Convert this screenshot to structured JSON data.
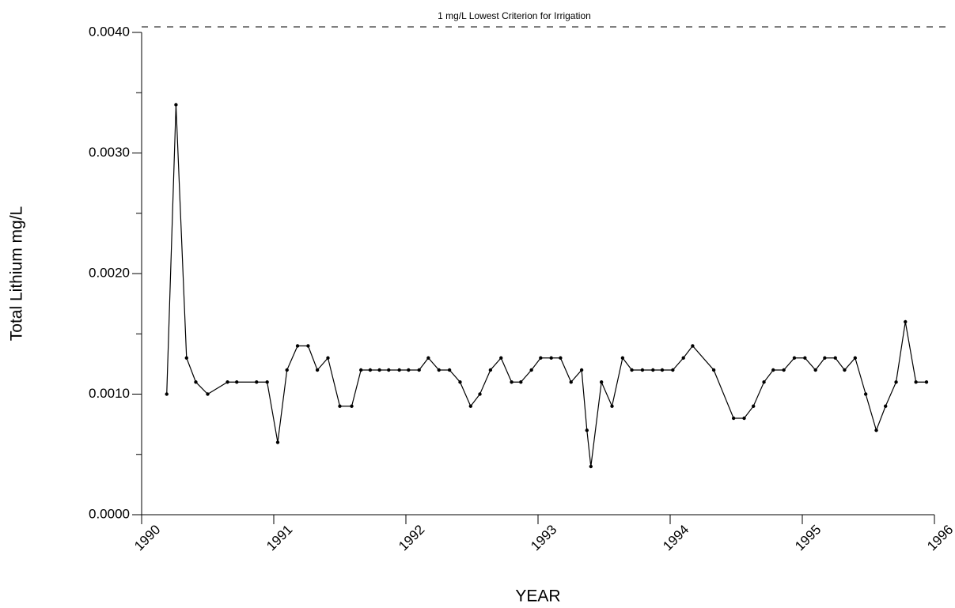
{
  "chart_data": {
    "type": "line",
    "y_label": "Total Lithium mg/L",
    "x_label": "YEAR",
    "reference_line": {
      "value": 0.004,
      "label": "1 mg/L Lowest Criterion for Irrigation"
    },
    "xlim": [
      1990,
      1996
    ],
    "xticks": [
      1990,
      1991,
      1992,
      1993,
      1994,
      1995,
      1996
    ],
    "ylim": [
      0,
      0.004
    ],
    "yticks": [
      {
        "value": 0,
        "label": "0.0000"
      },
      {
        "value": 0.001,
        "label": "0.0010"
      },
      {
        "value": 0.002,
        "label": "0.0020"
      },
      {
        "value": 0.003,
        "label": "0.0030"
      },
      {
        "value": 0.004,
        "label": "0.0040"
      }
    ],
    "yminor_ticks": [
      0.0005,
      0.0015,
      0.0025,
      0.0035
    ],
    "x": [
      1990.19,
      1990.26,
      1990.34,
      1990.41,
      1990.5,
      1990.65,
      1990.72,
      1990.87,
      1990.95,
      1991.03,
      1991.1,
      1991.18,
      1991.26,
      1991.33,
      1991.41,
      1991.5,
      1991.59,
      1991.66,
      1991.73,
      1991.8,
      1991.87,
      1991.95,
      1992.02,
      1992.1,
      1992.17,
      1992.25,
      1992.33,
      1992.41,
      1992.49,
      1992.56,
      1992.64,
      1992.72,
      1992.8,
      1992.87,
      1992.95,
      1993.02,
      1993.1,
      1993.17,
      1993.25,
      1993.33,
      1993.37,
      1993.4,
      1993.48,
      1993.56,
      1993.64,
      1993.71,
      1993.79,
      1993.87,
      1993.94,
      1994.02,
      1994.1,
      1994.17,
      1994.33,
      1994.48,
      1994.56,
      1994.63,
      1994.71,
      1994.78,
      1994.86,
      1994.94,
      1995.02,
      1995.1,
      1995.17,
      1995.25,
      1995.32,
      1995.4,
      1995.48,
      1995.56,
      1995.63,
      1995.71,
      1995.78,
      1995.86,
      1995.94
    ],
    "series": [
      {
        "color": "#000000",
        "values": [
          0.001,
          0.0034,
          0.0013,
          0.0011,
          0.001,
          0.0011,
          0.0011,
          0.0011,
          0.0011,
          0.0006,
          0.0012,
          0.0014,
          0.0014,
          0.0012,
          0.0013,
          0.0009,
          0.0009,
          0.0012,
          0.0012,
          0.0012,
          0.0012,
          0.0012,
          0.0012,
          0.0012,
          0.0013,
          0.0012,
          0.0012,
          0.0011,
          0.0009,
          0.001,
          0.0012,
          0.0013,
          0.0011,
          0.0011,
          0.0012,
          0.0013,
          0.0013,
          0.0013,
          0.0011,
          0.0012,
          0.0007,
          0.0004,
          0.0011,
          0.0009,
          0.0013,
          0.0012,
          0.0012,
          0.0012,
          0.0012,
          0.0012,
          0.0013,
          0.0014,
          0.0012,
          0.0008,
          0.0008,
          0.0009,
          0.0011,
          0.0012,
          0.0012,
          0.0013,
          0.0013,
          0.0012,
          0.0013,
          0.0013,
          0.0012,
          0.0013,
          0.001,
          0.0007,
          0.0009,
          0.0011,
          0.0016,
          0.0011,
          0.0011
        ]
      }
    ]
  }
}
